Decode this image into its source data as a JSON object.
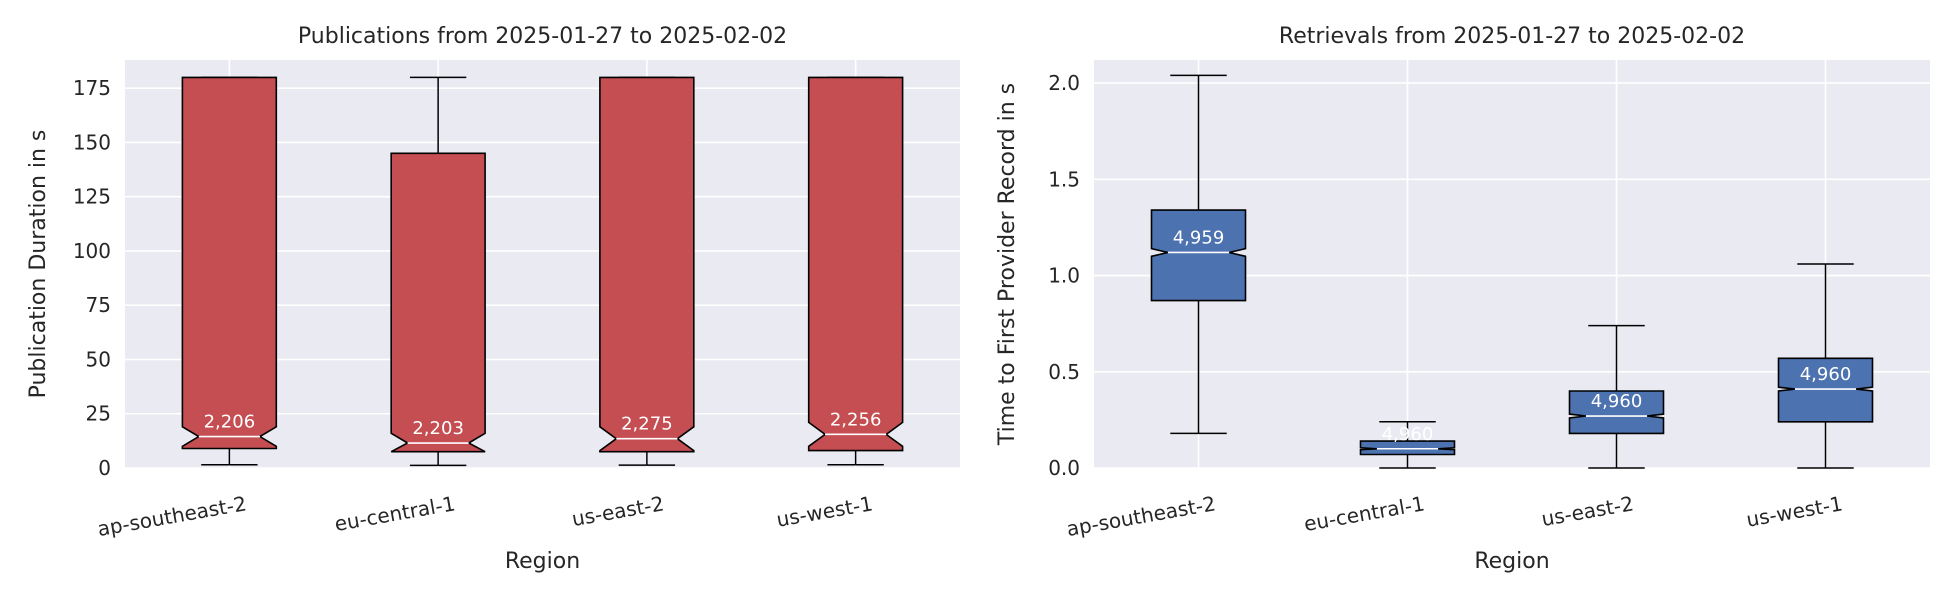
{
  "chart_data": [
    {
      "type": "box",
      "title": "Publications from 2025-01-27 to 2025-02-02",
      "xlabel": "Region",
      "ylabel": "Publication Duration in s",
      "ylim": [
        0,
        188
      ],
      "yticks": [
        0,
        25,
        50,
        75,
        100,
        125,
        150,
        175
      ],
      "grid": true,
      "notched": true,
      "box_color": "#c44e52",
      "categories": [
        "ap-southeast-2",
        "eu-central-1",
        "us-east-2",
        "us-west-1"
      ],
      "boxes": [
        {
          "whisker_low": 1.5,
          "q1": 9,
          "median": 14.5,
          "q3": 180,
          "whisker_high": 180,
          "notch_low": 10,
          "notch_high": 19,
          "count": "2,206"
        },
        {
          "whisker_low": 1.2,
          "q1": 7.5,
          "median": 11.5,
          "q3": 145,
          "whisker_high": 180,
          "notch_low": 7.5,
          "notch_high": 16,
          "count": "2,203"
        },
        {
          "whisker_low": 1.3,
          "q1": 7.5,
          "median": 13.5,
          "q3": 180,
          "whisker_high": 180,
          "notch_low": 8,
          "notch_high": 19,
          "count": "2,275"
        },
        {
          "whisker_low": 1.5,
          "q1": 8,
          "median": 15.5,
          "q3": 180,
          "whisker_high": 180,
          "notch_low": 10,
          "notch_high": 21,
          "count": "2,256"
        }
      ]
    },
    {
      "type": "box",
      "title": "Retrievals from 2025-01-27 to 2025-02-02",
      "xlabel": "Region",
      "ylabel": "Time to First Provider Record in s",
      "ylim": [
        0,
        2.12
      ],
      "yticks": [
        "0.0",
        "0.5",
        "1.0",
        "1.5",
        "2.0"
      ],
      "grid": true,
      "notched": true,
      "box_color": "#4c72b0",
      "categories": [
        "ap-southeast-2",
        "eu-central-1",
        "us-east-2",
        "us-west-1"
      ],
      "boxes": [
        {
          "whisker_low": 0.18,
          "q1": 0.87,
          "median": 1.12,
          "q3": 1.34,
          "whisker_high": 2.04,
          "notch_low": 1.1,
          "notch_high": 1.14,
          "count": "4,959"
        },
        {
          "whisker_low": 0.0,
          "q1": 0.07,
          "median": 0.1,
          "q3": 0.14,
          "whisker_high": 0.24,
          "notch_low": 0.095,
          "notch_high": 0.105,
          "count": "4,960"
        },
        {
          "whisker_low": 0.0,
          "q1": 0.18,
          "median": 0.27,
          "q3": 0.4,
          "whisker_high": 0.74,
          "notch_low": 0.26,
          "notch_high": 0.28,
          "count": "4,960"
        },
        {
          "whisker_low": 0.0,
          "q1": 0.24,
          "median": 0.41,
          "q3": 0.57,
          "whisker_high": 1.06,
          "notch_low": 0.4,
          "notch_high": 0.42,
          "count": "4,960"
        }
      ]
    }
  ]
}
